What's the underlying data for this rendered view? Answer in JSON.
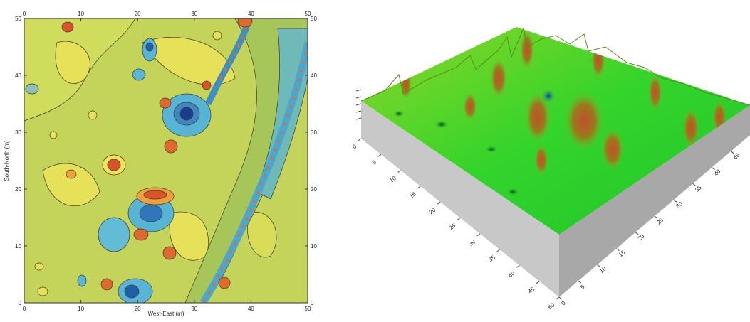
{
  "chart_data": [
    {
      "type": "heatmap",
      "xlabel": "West-East (m)",
      "ylabel": "South-North (m)",
      "xlim": [
        0,
        50
      ],
      "ylim": [
        0,
        50
      ],
      "x_ticks": [
        "0",
        "10",
        "20",
        "30",
        "40",
        "50"
      ],
      "y_ticks": [
        "0",
        "10",
        "20",
        "30",
        "40",
        "50"
      ],
      "ticks_mirrored_on_all_sides": true,
      "grid": false,
      "colors": {
        "low": "#1f5fa8",
        "mid_low": "#5ab4d6",
        "background": "#c9d65a",
        "mid_high": "#f2e25a",
        "high": "#d9542a"
      }
    },
    {
      "type": "surface",
      "x_ticks": [
        "0",
        "5",
        "10",
        "15",
        "20",
        "25",
        "30",
        "35",
        "40",
        "45",
        "50"
      ],
      "y_ticks": [
        "0",
        "5",
        "10",
        "15",
        "20",
        "25",
        "30",
        "35",
        "40",
        "45",
        "50"
      ],
      "colors": {
        "base": "#1fd12a",
        "mid": "#c8e21a",
        "peak": "#b8451c",
        "trough": "#1a2fd6",
        "side": "#a8a8a8"
      }
    }
  ]
}
